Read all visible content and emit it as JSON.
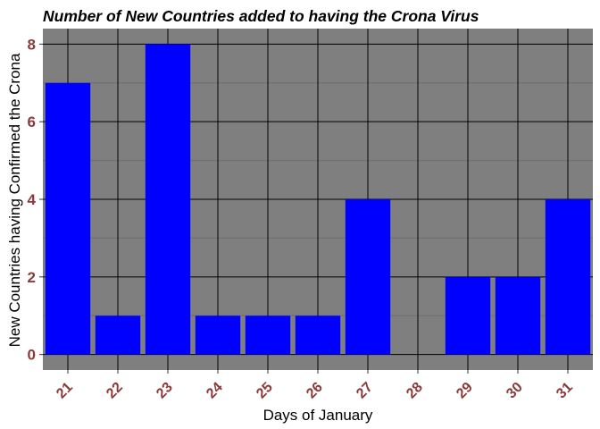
{
  "chart_data": {
    "type": "bar",
    "title": "Number of New Countries added to having the Crona Virus",
    "xlabel": "Days of January",
    "ylabel": "New Countries having Confirmed the Crona",
    "categories": [
      "21",
      "22",
      "23",
      "24",
      "25",
      "26",
      "27",
      "28",
      "29",
      "30",
      "31"
    ],
    "values": [
      7,
      1,
      8,
      1,
      1,
      1,
      4,
      0,
      2,
      2,
      4
    ],
    "yticks": [
      "0",
      "2",
      "4",
      "6",
      "8"
    ],
    "ylim": [
      -0.4,
      8.4
    ],
    "grid": true,
    "colors": {
      "bar": "#0000FF",
      "panel": "#7F7F7F",
      "grid_major": "#000000",
      "grid_minor": "#6E6E6E",
      "tick_text": "#8B3A3A"
    }
  }
}
